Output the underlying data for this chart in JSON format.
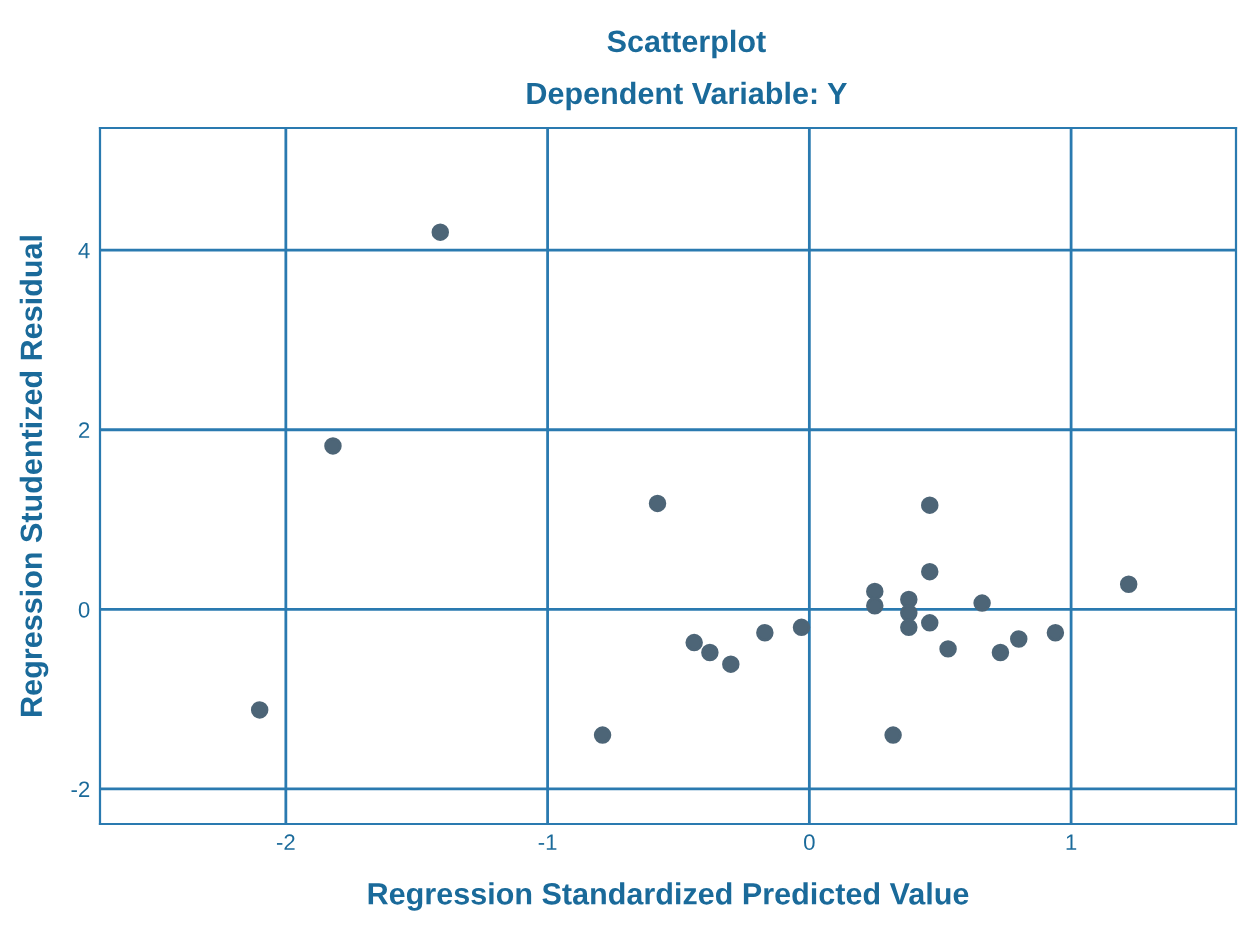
{
  "chart_data": {
    "type": "scatter",
    "title": "Scatterplot",
    "subtitle": "Dependent Variable: Y",
    "xlabel": "Regression Standardized Predicted Value",
    "ylabel": "Regression Studentized Residual",
    "xlim": [
      -2.71,
      1.63
    ],
    "ylim": [
      -2.39,
      5.36
    ],
    "xticks": [
      -2,
      -1,
      0,
      1
    ],
    "yticks": [
      -2,
      0,
      2,
      4
    ],
    "grid": true,
    "marker": "circle",
    "series": [
      {
        "color": "#4d6577",
        "x": [
          -2.1,
          -1.82,
          -1.41,
          -0.58,
          -0.79,
          -0.44,
          -0.38,
          -0.3,
          -0.17,
          -0.03,
          0.25,
          0.25,
          0.32,
          0.38,
          0.38,
          0.38,
          0.46,
          0.46,
          0.46,
          0.53,
          0.66,
          0.73,
          0.8,
          0.94,
          1.22
        ],
        "values": [
          -1.12,
          1.82,
          4.2,
          1.18,
          -1.4,
          -0.37,
          -0.48,
          -0.61,
          -0.26,
          -0.2,
          0.2,
          0.04,
          -1.4,
          0.11,
          -0.04,
          -0.2,
          1.16,
          0.42,
          -0.15,
          -0.44,
          0.07,
          -0.48,
          -0.33,
          -0.26,
          0.28
        ]
      }
    ]
  }
}
